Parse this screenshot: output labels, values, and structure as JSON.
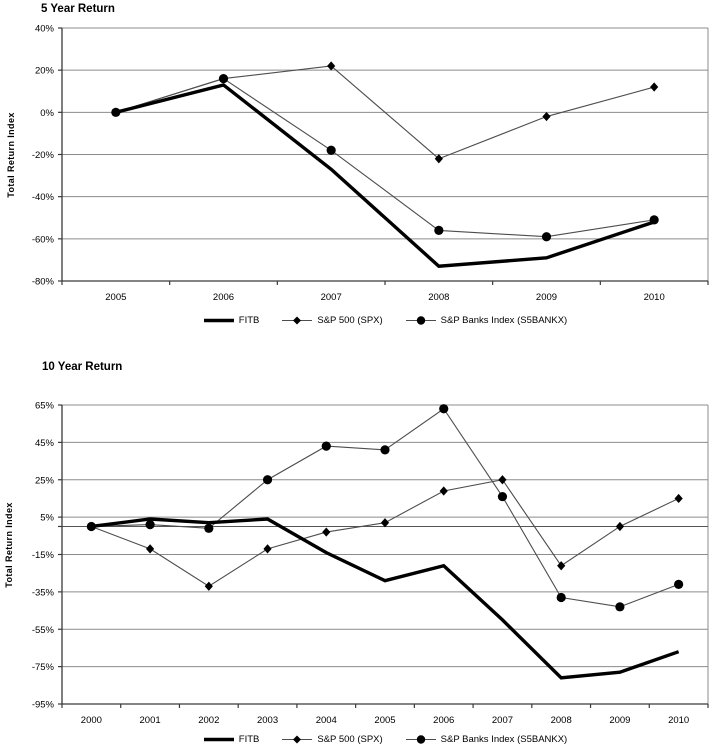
{
  "page": {
    "background": "#ffffff"
  },
  "colors": {
    "grid": "#8c8c8c",
    "axis": "#3a3a3a",
    "zero_line": "#555555",
    "thin_series_line": "#4d4d4d",
    "fitb_line": "#000000",
    "marker": "#000000",
    "text": "#000000"
  },
  "chart_data": [
    {
      "type": "line",
      "title": "5 Year Return",
      "ylabel": "Total Return Index",
      "xlabel": "",
      "categories": [
        "2005",
        "2006",
        "2007",
        "2008",
        "2009",
        "2010"
      ],
      "ytick_labels": [
        "40%",
        "20%",
        "0%",
        "-20%",
        "-40%",
        "-60%",
        "-80%"
      ],
      "ytick_values": [
        40,
        20,
        0,
        -20,
        -40,
        -60,
        -80
      ],
      "ylim": [
        -80,
        40
      ],
      "grid": "horizontal",
      "zero_axis_line": false,
      "legend_position": "bottom",
      "series": [
        {
          "name": "FITB",
          "marker": "none",
          "thick": true,
          "values": [
            0,
            13,
            -27,
            -73,
            -69,
            -52
          ]
        },
        {
          "name": "S&P 500 (SPX)",
          "marker": "diamond",
          "thick": false,
          "values": [
            0,
            16,
            22,
            -22,
            -2,
            12
          ]
        },
        {
          "name": "S&P Banks Index (S5BANKX)",
          "marker": "circle",
          "thick": false,
          "values": [
            0,
            16,
            -18,
            -56,
            -59,
            -51
          ]
        }
      ]
    },
    {
      "type": "line",
      "title": "10 Year Return",
      "ylabel": "Total Return Index",
      "xlabel": "",
      "categories": [
        "2000",
        "2001",
        "2002",
        "2003",
        "2004",
        "2005",
        "2006",
        "2007",
        "2008",
        "2009",
        "2010"
      ],
      "ytick_labels": [
        "65%",
        "45%",
        "25%",
        "5%",
        "-15%",
        "-35%",
        "-55%",
        "-75%",
        "-95%"
      ],
      "ytick_values": [
        65,
        45,
        25,
        5,
        -15,
        -35,
        -55,
        -75,
        -95
      ],
      "ylim": [
        -95,
        65
      ],
      "grid": "horizontal",
      "zero_axis_line": true,
      "legend_position": "bottom",
      "series": [
        {
          "name": "FITB",
          "marker": "none",
          "thick": true,
          "values": [
            0,
            4,
            2,
            4,
            -14,
            -29,
            -21,
            -50,
            -81,
            -78,
            -67
          ]
        },
        {
          "name": "S&P 500 (SPX)",
          "marker": "diamond",
          "thick": false,
          "values": [
            0,
            -12,
            -32,
            -12,
            -3,
            2,
            19,
            25,
            -21,
            0,
            15
          ]
        },
        {
          "name": "S&P Banks Index (S5BANKX)",
          "marker": "circle",
          "thick": false,
          "values": [
            0,
            1,
            -1,
            25,
            43,
            41,
            63,
            16,
            -38,
            -43,
            -31
          ]
        }
      ]
    }
  ]
}
